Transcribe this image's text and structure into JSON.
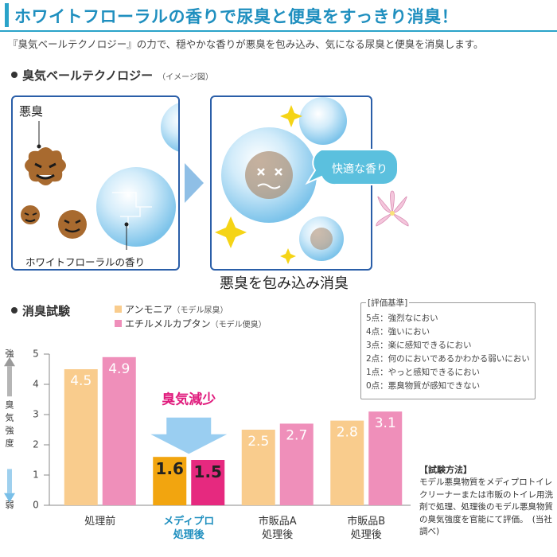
{
  "header": {
    "title": "ホワイトフローラルの香りで尿臭と便臭をすっきり消臭！",
    "lead": "『臭気ベールテクノロジー』の力で、穏やかな香りが悪臭を包み込み、気になる尿臭と便臭を消臭します。"
  },
  "section1": {
    "heading": "臭気ベールテクノロジー",
    "note": "（イメージ図）",
    "left_panel": {
      "bad_odor_label": "悪臭",
      "fragrance_label": "ホワイトフローラルの香り"
    },
    "right_panel": {
      "bubble_label": "快適な香り"
    },
    "caption": "悪臭を包み込み消臭"
  },
  "section2": {
    "heading": "消臭試験",
    "legend": [
      {
        "label": "アンモニア",
        "note": "（モデル尿臭）",
        "color": "#f9cc8d"
      },
      {
        "label": "エチルメルカプタン",
        "note": "（モデル便臭）",
        "color": "#ef8fba"
      }
    ],
    "criteria": {
      "title": "評価基準",
      "items": [
        "5点：強烈なにおい",
        "4点：強いにおい",
        "3点：楽に感知できるにおい",
        "2点：何のにおいであるかわかる弱いにおい",
        "1点：やっと感知できるにおい",
        "0点：悪臭物質が感知できない"
      ]
    },
    "method": {
      "title": "【試験方法】",
      "text": "モデル悪臭物質をメディプロトイレクリーナーまたは市販のトイレ用洗剤で処理、処理後のモデル悪臭物質の臭気強度を官能にて評価。　(当社調べ)"
    },
    "reduction_label": "臭気減少",
    "axis_side": {
      "strong": "強",
      "label": "臭気強度",
      "weak": "弱"
    }
  },
  "chart_data": {
    "type": "bar",
    "categories": [
      "処理前",
      "メディプロ\n処理後",
      "市販品A\n処理後",
      "市販品B\n処理後"
    ],
    "series": [
      {
        "name": "アンモニア",
        "values": [
          4.5,
          1.6,
          2.5,
          2.8
        ]
      },
      {
        "name": "エチルメルカプタン",
        "values": [
          4.9,
          1.5,
          2.7,
          3.1
        ]
      }
    ],
    "yticks": [
      0,
      1,
      2,
      3,
      4,
      5
    ],
    "ylim": [
      0,
      5
    ],
    "highlight_category": 1,
    "colors": {
      "s0": "#f9cc8d",
      "s1": "#ef8fba",
      "s0_highlight": "#f2a50f",
      "s1_highlight": "#e6297f",
      "highlight_text": "#1f8fbf",
      "reduction_text": "#e01a7c"
    }
  }
}
